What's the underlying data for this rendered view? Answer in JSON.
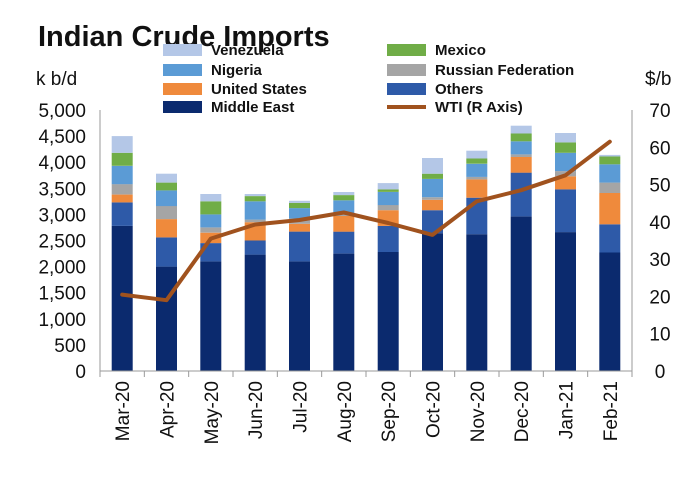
{
  "chart_data": {
    "type": "bar",
    "stacked": true,
    "title": "Indian Crude Imports",
    "ylabel": "k b/d",
    "y2label": "$/b",
    "ylim": [
      0,
      5000
    ],
    "y2lim": [
      0,
      70
    ],
    "yticks": [
      "0",
      "500",
      "1,000",
      "1,500",
      "2,000",
      "2,500",
      "3,000",
      "3,500",
      "4,000",
      "4,500",
      "5,000"
    ],
    "y2ticks": [
      "0",
      "10",
      "20",
      "30",
      "40",
      "50",
      "60",
      "70"
    ],
    "categories": [
      "Mar-20",
      "Apr-20",
      "May-20",
      "Jun-20",
      "Jul-20",
      "Aug-20",
      "Sep-20",
      "Oct-20",
      "Nov-20",
      "Dec-20",
      "Jan-21",
      "Feb-21"
    ],
    "series": [
      {
        "name": "Middle East",
        "color": "#0b2a6e",
        "values": [
          2780,
          2000,
          2100,
          2230,
          2100,
          2250,
          2280,
          2640,
          2620,
          2960,
          2660,
          2270
        ]
      },
      {
        "name": "Others",
        "color": "#2e5aa8",
        "values": [
          450,
          560,
          350,
          270,
          570,
          420,
          500,
          440,
          700,
          840,
          820,
          540
        ]
      },
      {
        "name": "United States",
        "color": "#ef8a3c",
        "values": [
          150,
          350,
          200,
          350,
          150,
          300,
          300,
          200,
          350,
          300,
          250,
          600
        ]
      },
      {
        "name": "Russian Federation",
        "color": "#a5a5a5",
        "values": [
          200,
          250,
          100,
          50,
          100,
          50,
          100,
          50,
          50,
          50,
          100,
          200
        ]
      },
      {
        "name": "Nigeria",
        "color": "#5b9bd5",
        "values": [
          350,
          300,
          250,
          350,
          200,
          250,
          250,
          350,
          250,
          250,
          350,
          350
        ]
      },
      {
        "name": "Mexico",
        "color": "#70ad47",
        "values": [
          250,
          150,
          250,
          100,
          100,
          100,
          50,
          100,
          100,
          150,
          200,
          150
        ]
      },
      {
        "name": "Venezuela",
        "color": "#b4c7e7",
        "values": [
          320,
          170,
          140,
          40,
          40,
          60,
          120,
          300,
          150,
          150,
          180,
          30
        ]
      }
    ],
    "line": {
      "name": "WTI (R Axis)",
      "color": "#a0521e",
      "axis": "right",
      "values": [
        20.5,
        19.0,
        35.5,
        39.3,
        40.5,
        42.5,
        39.7,
        36.5,
        45.5,
        48.5,
        52.5,
        61.5
      ]
    },
    "legend": {
      "left": [
        "Venezuela",
        "Nigeria",
        "United States",
        "Middle East"
      ],
      "right": [
        "Mexico",
        "Russian Federation",
        "Others",
        "WTI (R Axis)"
      ]
    }
  }
}
